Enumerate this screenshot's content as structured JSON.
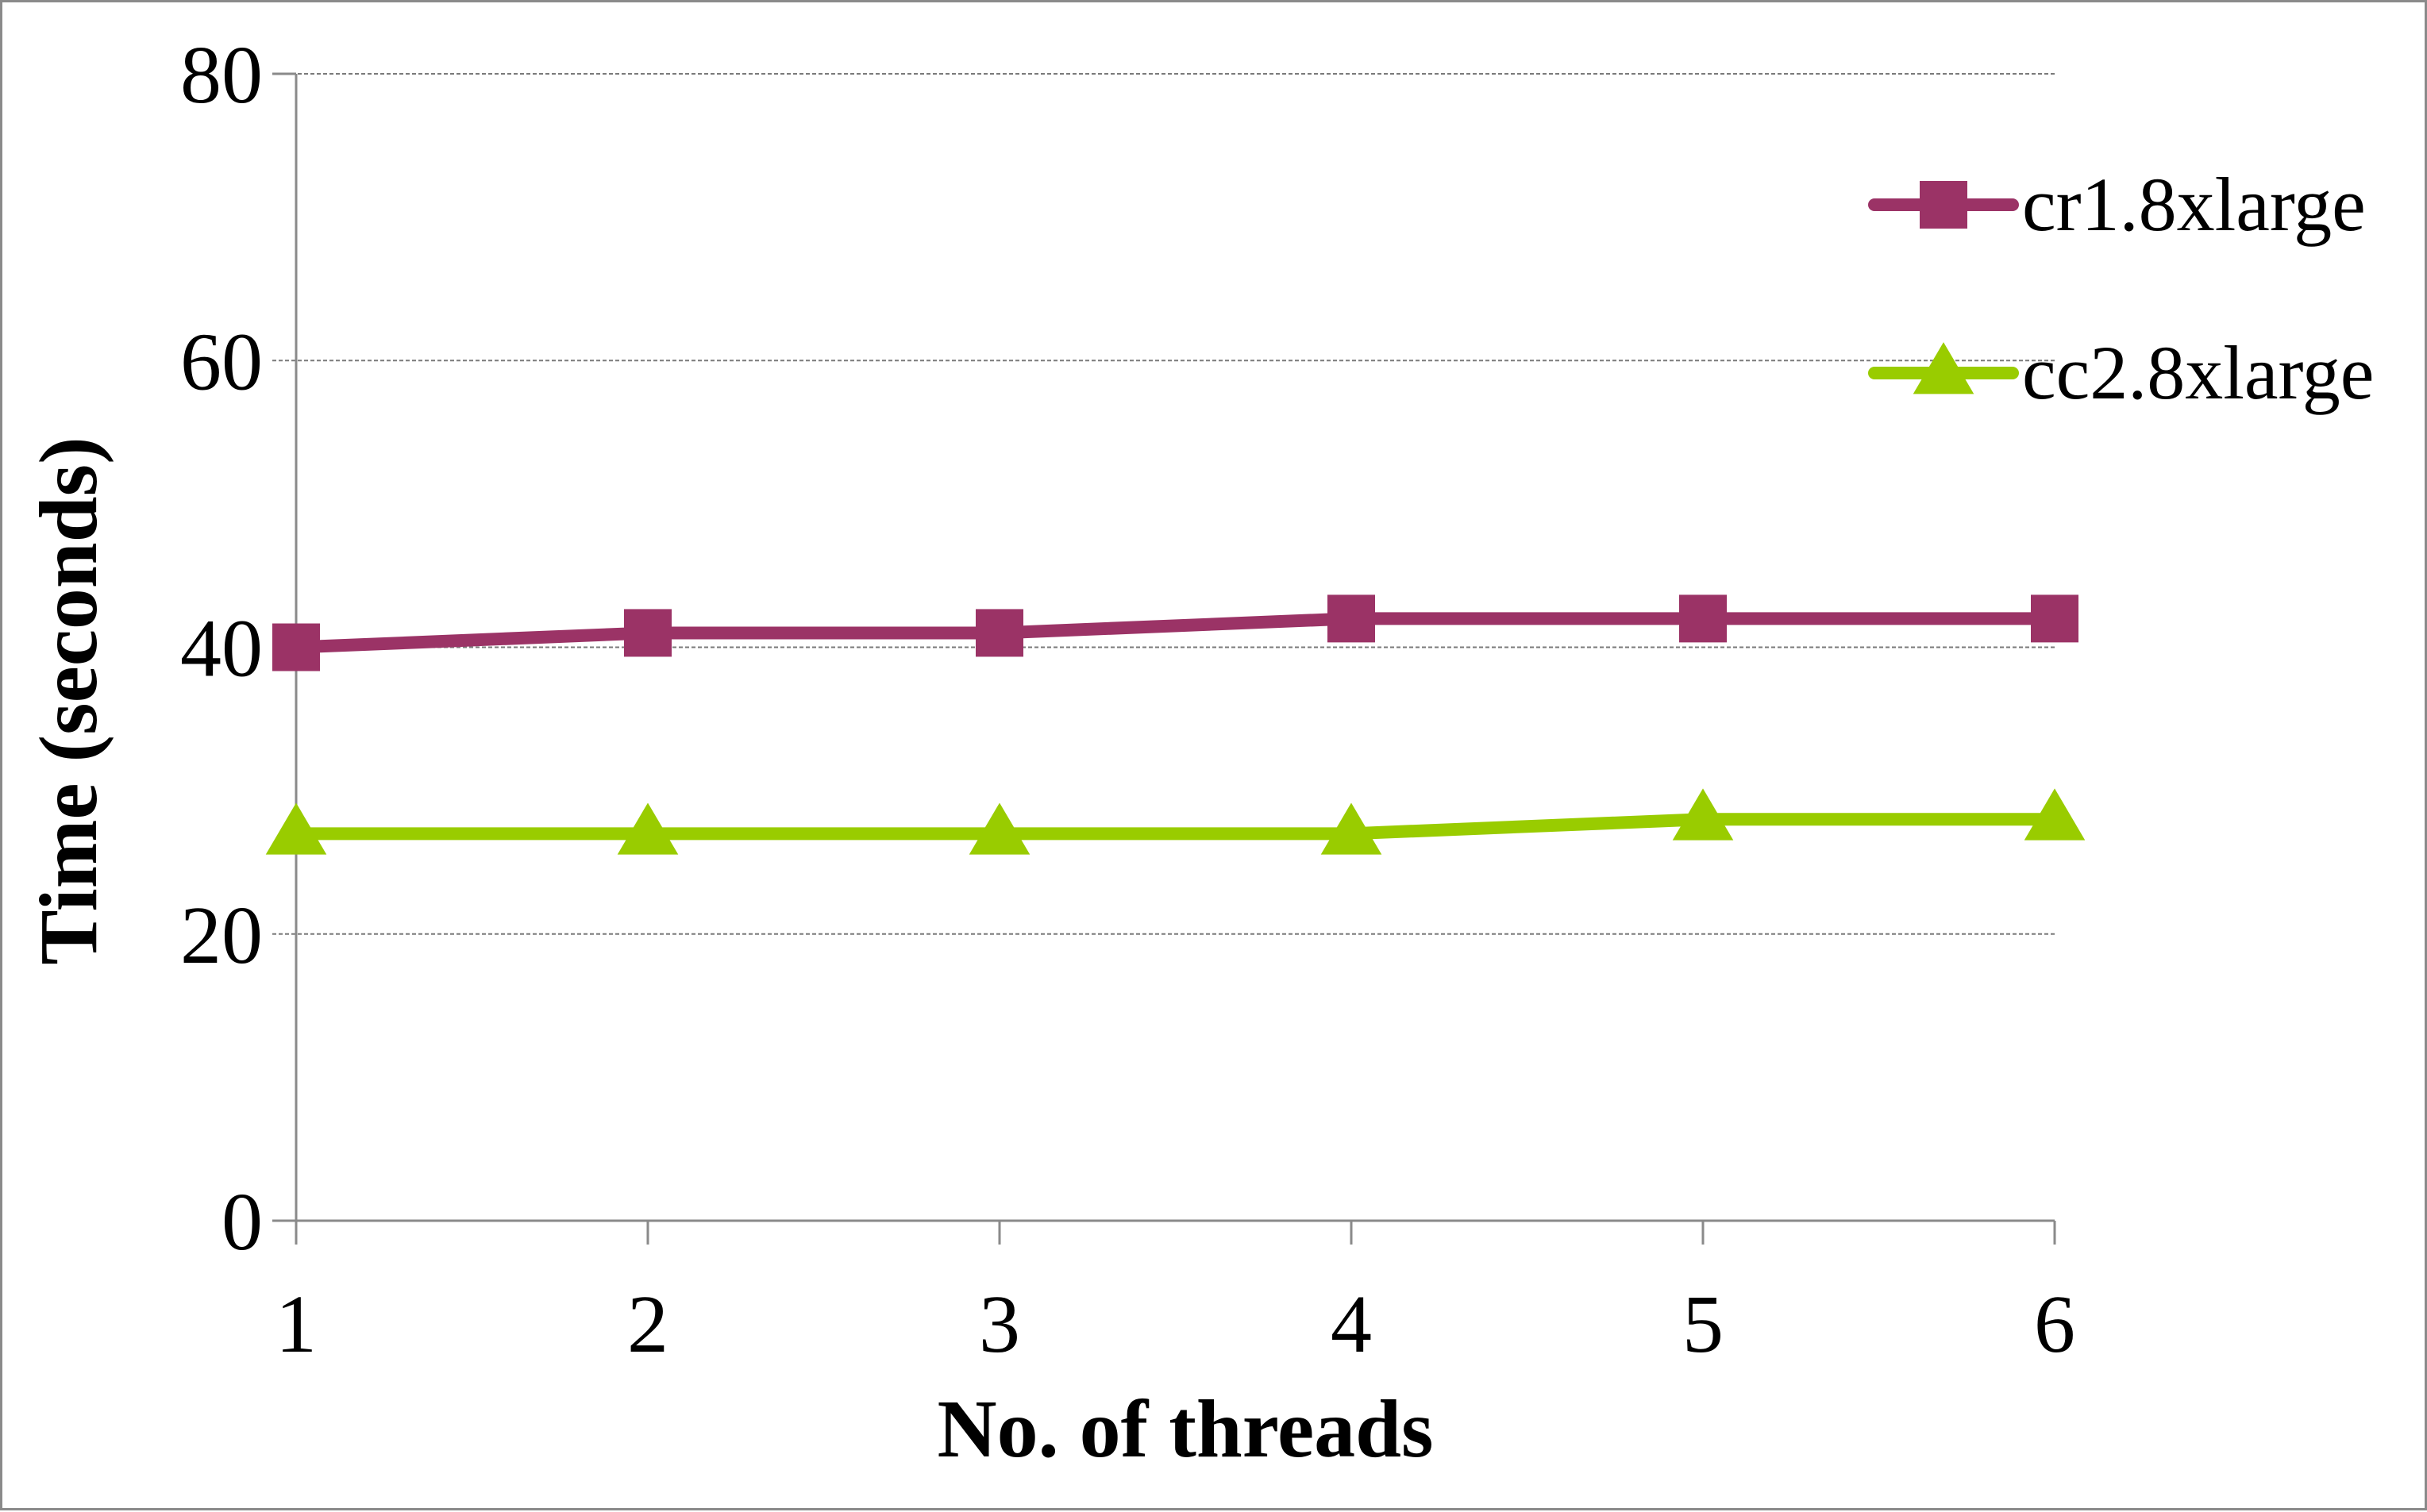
{
  "chart_data": {
    "type": "line",
    "title": "",
    "xlabel": "No. of threads",
    "ylabel": "Time (seconds)",
    "x": [
      1,
      2,
      3,
      4,
      5,
      6
    ],
    "x_tick_labels": [
      "1",
      "2",
      "3",
      "4",
      "5",
      "6"
    ],
    "ylim": [
      0,
      80
    ],
    "y_ticks": [
      0,
      20,
      40,
      60,
      80
    ],
    "y_tick_labels": [
      "0",
      "20",
      "40",
      "60",
      "80"
    ],
    "grid": true,
    "legend_position": "top-right",
    "series": [
      {
        "name": "cr1.8xlarge",
        "values": [
          40,
          41,
          41,
          42,
          42,
          42
        ],
        "color": "#9b3366",
        "marker": "square"
      },
      {
        "name": "cc2.8xlarge",
        "values": [
          27,
          27,
          27,
          27,
          28,
          28
        ],
        "color": "#99cc00",
        "marker": "triangle"
      }
    ]
  }
}
